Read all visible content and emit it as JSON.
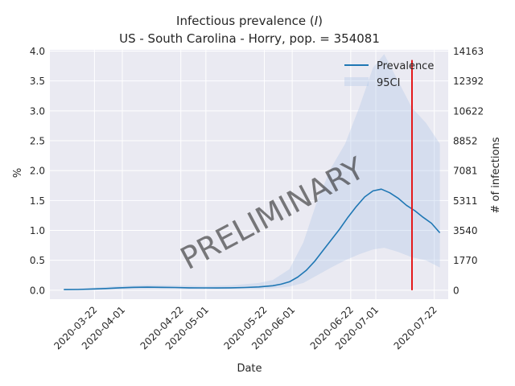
{
  "chart_data": {
    "type": "line",
    "title": "Infectious prevalence (I)",
    "title_parts": {
      "text": "Infectious prevalence (",
      "var": "I",
      "close": ")"
    },
    "subtitle": "US - South Carolina - Horry, pop. = 354081",
    "xlabel": "Date",
    "ylabel": "%",
    "ylabel_right": "# of infections",
    "watermark": "PRELIMINARY",
    "x_start": "2020-03-11",
    "x_end": "2020-07-24",
    "xlim": [
      "2020-03-06",
      "2020-07-27"
    ],
    "ylim": [
      -0.15,
      4.02
    ],
    "x_ticks": [
      "2020-03-22",
      "2020-04-01",
      "2020-04-22",
      "2020-05-01",
      "2020-05-22",
      "2020-06-01",
      "2020-06-22",
      "2020-07-01",
      "2020-07-22"
    ],
    "y_ticks": [
      "0.0",
      "0.5",
      "1.0",
      "1.5",
      "2.0",
      "2.5",
      "3.0",
      "3.5",
      "4.0"
    ],
    "y_ticks_right": [
      {
        "value": 0,
        "label": "0"
      },
      {
        "value": 1770,
        "label": "1770"
      },
      {
        "value": 3540,
        "label": "3540"
      },
      {
        "value": 5311,
        "label": "5311"
      },
      {
        "value": 7081,
        "label": "7081"
      },
      {
        "value": 8852,
        "label": "8852"
      },
      {
        "value": 10622,
        "label": "10622"
      },
      {
        "value": 12392,
        "label": "12392"
      },
      {
        "value": 14163,
        "label": "14163"
      }
    ],
    "population": 354081,
    "legend": {
      "placement": "top-right",
      "entries": [
        "Prevalence",
        "95CI"
      ]
    },
    "grid": true,
    "series": [
      {
        "name": "Prevalence",
        "color": "#1f77b4",
        "points": [
          [
            "2020-03-11",
            0.01
          ],
          [
            "2020-03-16",
            0.012
          ],
          [
            "2020-03-21",
            0.02
          ],
          [
            "2020-03-26",
            0.028
          ],
          [
            "2020-03-31",
            0.04
          ],
          [
            "2020-04-05",
            0.048
          ],
          [
            "2020-04-10",
            0.05
          ],
          [
            "2020-04-15",
            0.048
          ],
          [
            "2020-04-20",
            0.045
          ],
          [
            "2020-04-25",
            0.04
          ],
          [
            "2020-04-30",
            0.038
          ],
          [
            "2020-05-05",
            0.037
          ],
          [
            "2020-05-10",
            0.04
          ],
          [
            "2020-05-15",
            0.045
          ],
          [
            "2020-05-20",
            0.055
          ],
          [
            "2020-05-25",
            0.075
          ],
          [
            "2020-05-28",
            0.1
          ],
          [
            "2020-05-31",
            0.14
          ],
          [
            "2020-06-03",
            0.22
          ],
          [
            "2020-06-06",
            0.33
          ],
          [
            "2020-06-09",
            0.48
          ],
          [
            "2020-06-12",
            0.66
          ],
          [
            "2020-06-15",
            0.84
          ],
          [
            "2020-06-18",
            1.02
          ],
          [
            "2020-06-21",
            1.22
          ],
          [
            "2020-06-24",
            1.4
          ],
          [
            "2020-06-27",
            1.56
          ],
          [
            "2020-06-30",
            1.66
          ],
          [
            "2020-07-03",
            1.69
          ],
          [
            "2020-07-06",
            1.63
          ],
          [
            "2020-07-09",
            1.54
          ],
          [
            "2020-07-12",
            1.42
          ],
          [
            "2020-07-15",
            1.33
          ],
          [
            "2020-07-18",
            1.22
          ],
          [
            "2020-07-21",
            1.12
          ],
          [
            "2020-07-24",
            0.96
          ]
        ]
      }
    ],
    "ci_band": {
      "name": "95CI",
      "color": "#aec7e8",
      "points": [
        [
          "2020-03-11",
          0.0,
          0.02
        ],
        [
          "2020-03-21",
          0.0,
          0.04
        ],
        [
          "2020-03-31",
          0.01,
          0.07
        ],
        [
          "2020-04-10",
          0.02,
          0.09
        ],
        [
          "2020-04-20",
          0.02,
          0.08
        ],
        [
          "2020-04-30",
          0.015,
          0.07
        ],
        [
          "2020-05-10",
          0.02,
          0.08
        ],
        [
          "2020-05-20",
          0.02,
          0.12
        ],
        [
          "2020-05-25",
          0.03,
          0.17
        ],
        [
          "2020-05-31",
          0.06,
          0.35
        ],
        [
          "2020-06-05",
          0.12,
          0.8
        ],
        [
          "2020-06-10",
          0.25,
          1.5
        ],
        [
          "2020-06-15",
          0.38,
          2.05
        ],
        [
          "2020-06-20",
          0.5,
          2.45
        ],
        [
          "2020-06-25",
          0.6,
          3.05
        ],
        [
          "2020-06-30",
          0.68,
          3.72
        ],
        [
          "2020-07-04",
          0.71,
          3.95
        ],
        [
          "2020-07-09",
          0.64,
          3.5
        ],
        [
          "2020-07-14",
          0.55,
          3.05
        ],
        [
          "2020-07-19",
          0.5,
          2.8
        ],
        [
          "2020-07-24",
          0.38,
          2.45
        ]
      ]
    },
    "vline": {
      "x": "2020-07-14",
      "ymin": 0.0,
      "ymax": 3.85,
      "color": "#e41a1c"
    }
  }
}
